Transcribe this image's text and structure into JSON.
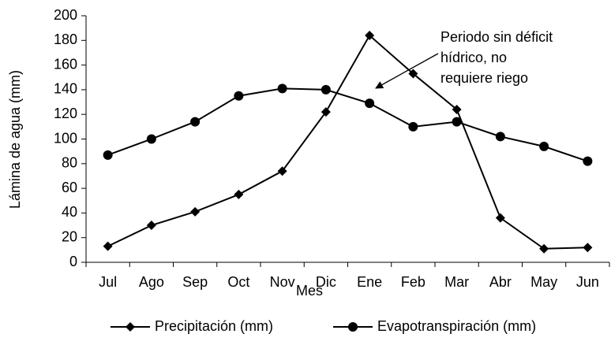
{
  "chart_data": {
    "type": "line",
    "categories": [
      "Jul",
      "Ago",
      "Sep",
      "Oct",
      "Nov",
      "Dic",
      "Ene",
      "Feb",
      "Mar",
      "Abr",
      "May",
      "Jun"
    ],
    "series": [
      {
        "name": "Precipitación (mm)",
        "color": "#000000",
        "marker": "diamond",
        "values": [
          13,
          30,
          41,
          55,
          74,
          122,
          184,
          153,
          124,
          36,
          11,
          12
        ]
      },
      {
        "name": "Evapotranspiración (mm)",
        "color": "#000000",
        "marker": "circle",
        "values": [
          87,
          100,
          114,
          135,
          141,
          140,
          129,
          110,
          114,
          102,
          94,
          82
        ]
      }
    ],
    "xlabel": "Mes",
    "ylabel": "Lámina de agua (mm)",
    "ylim": [
      0,
      200
    ],
    "yticks": [
      0,
      20,
      40,
      60,
      80,
      100,
      120,
      140,
      160,
      180,
      200
    ],
    "grid": false,
    "legend": "bottom",
    "annotation": [
      "Periodo sin déficit",
      "hídrico, no",
      "requiere riego"
    ]
  }
}
